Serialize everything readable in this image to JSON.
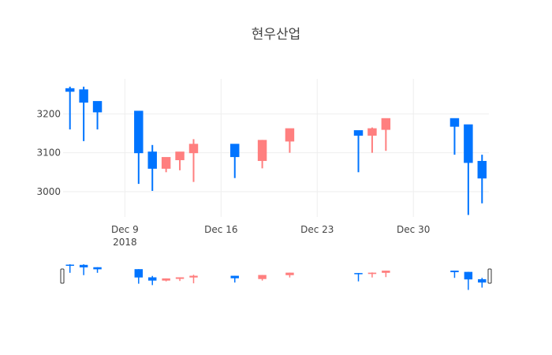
{
  "chart_data": {
    "type": "candlestick",
    "title": "현우산업",
    "xlabel": "",
    "ylabel": "",
    "x_tick_labels": [
      {
        "date": "2018-12-09",
        "label": "Dec 9",
        "sublabel": "2018"
      },
      {
        "date": "2018-12-16",
        "label": "Dec 16",
        "sublabel": ""
      },
      {
        "date": "2018-12-23",
        "label": "Dec 23",
        "sublabel": ""
      },
      {
        "date": "2018-12-30",
        "label": "Dec 30",
        "sublabel": ""
      }
    ],
    "y_ticks": [
      3000,
      3100,
      3200
    ],
    "ylim": [
      2935,
      3290
    ],
    "xlim": [
      "2018-12-04 12:00",
      "2019-01-04 12:00"
    ],
    "grid": true,
    "legend": "none",
    "rangeslider": true,
    "colors": {
      "increasing": "#ff7f7f",
      "decreasing": "#0074ff",
      "grid": "#eeeeee",
      "text": "#444444"
    },
    "candles": [
      {
        "date": "2018-12-05",
        "open": 3265,
        "high": 3270,
        "low": 3160,
        "close": 3258
      },
      {
        "date": "2018-12-06",
        "open": 3262,
        "high": 3270,
        "low": 3130,
        "close": 3230
      },
      {
        "date": "2018-12-07",
        "open": 3232,
        "high": 3232,
        "low": 3160,
        "close": 3205
      },
      {
        "date": "2018-12-10",
        "open": 3207,
        "high": 3207,
        "low": 3020,
        "close": 3100
      },
      {
        "date": "2018-12-11",
        "open": 3102,
        "high": 3120,
        "low": 3002,
        "close": 3060
      },
      {
        "date": "2018-12-12",
        "open": 3060,
        "high": 3088,
        "low": 3050,
        "close": 3088
      },
      {
        "date": "2018-12-13",
        "open": 3082,
        "high": 3102,
        "low": 3055,
        "close": 3102
      },
      {
        "date": "2018-12-14",
        "open": 3100,
        "high": 3135,
        "low": 3025,
        "close": 3122
      },
      {
        "date": "2018-12-17",
        "open": 3122,
        "high": 3122,
        "low": 3035,
        "close": 3090
      },
      {
        "date": "2018-12-19",
        "open": 3080,
        "high": 3133,
        "low": 3060,
        "close": 3132
      },
      {
        "date": "2018-12-21",
        "open": 3130,
        "high": 3162,
        "low": 3100,
        "close": 3162
      },
      {
        "date": "2018-12-26",
        "open": 3157,
        "high": 3157,
        "low": 3050,
        "close": 3145
      },
      {
        "date": "2018-12-27",
        "open": 3145,
        "high": 3165,
        "low": 3100,
        "close": 3162
      },
      {
        "date": "2018-12-28",
        "open": 3160,
        "high": 3188,
        "low": 3105,
        "close": 3188
      },
      {
        "date": "2019-01-02",
        "open": 3188,
        "high": 3188,
        "low": 3095,
        "close": 3168
      },
      {
        "date": "2019-01-03",
        "open": 3172,
        "high": 3172,
        "low": 2940,
        "close": 3075
      },
      {
        "date": "2019-01-04",
        "open": 3078,
        "high": 3095,
        "low": 2970,
        "close": 3035
      }
    ]
  }
}
